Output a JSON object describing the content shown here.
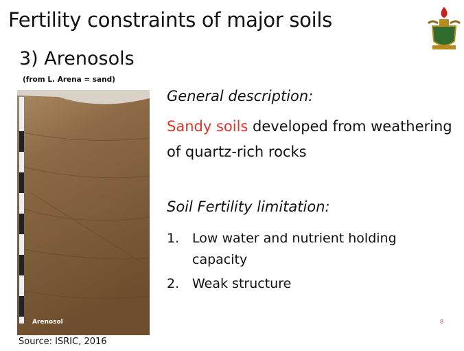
{
  "header": {
    "title": "Fertility constraints of major soils",
    "subtitle": "3) Arenosols",
    "etymology": "(from L. Arena = sand)"
  },
  "image": {
    "label": "Arenosol",
    "source": "Source: ISRIC, 2016"
  },
  "description": {
    "heading": "General description:",
    "highlight": "Sandy soils",
    "text": " developed from weathering of quartz-rich rocks"
  },
  "limitations": {
    "heading": "Soil Fertility limitation:",
    "items": [
      {
        "number": "1.",
        "text": "Low water and nutrient holding capacity"
      },
      {
        "number": "2.",
        "text": "Weak structure"
      }
    ]
  },
  "page_number": "8"
}
